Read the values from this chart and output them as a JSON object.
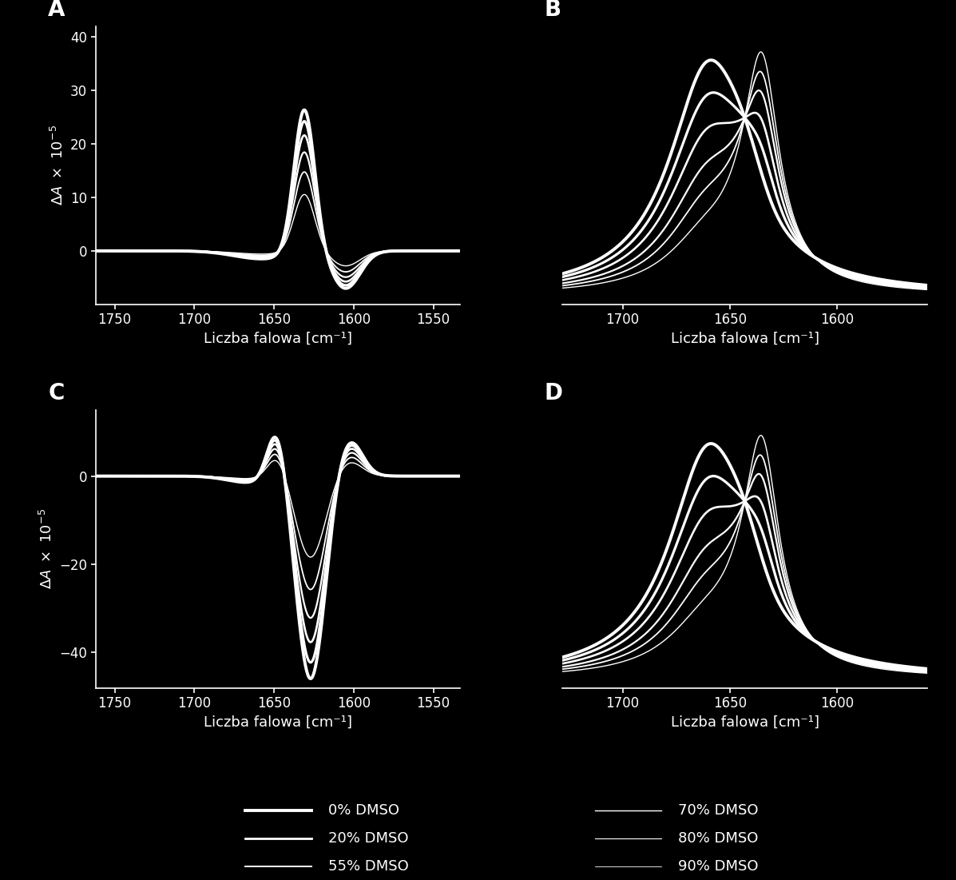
{
  "background_color": "#000000",
  "text_color": "#ffffff",
  "spine_color": "#ffffff",
  "xlabel": "Liczba falowa [cm⁻¹]",
  "panel_A": {
    "xlim": [
      1762,
      1533
    ],
    "ylim": [
      -10,
      42
    ],
    "yticks": [
      0,
      10,
      20,
      30,
      40
    ],
    "xticks": [
      1750,
      1700,
      1650,
      1600,
      1550
    ]
  },
  "panel_B": {
    "xlim": [
      1728,
      1558
    ],
    "ylim": [
      -6,
      42
    ],
    "xticks": [
      1700,
      1650,
      1600
    ]
  },
  "panel_C": {
    "xlim": [
      1762,
      1533
    ],
    "ylim": [
      -48,
      15
    ],
    "yticks": [
      -40,
      -20,
      0
    ],
    "xticks": [
      1750,
      1700,
      1650,
      1600,
      1550
    ]
  },
  "panel_D": {
    "xlim": [
      1728,
      1558
    ],
    "ylim": [
      -6,
      42
    ],
    "xticks": [
      1700,
      1650,
      1600
    ]
  },
  "legend_left_labels": [
    "0% DMSO",
    "20% DMSO",
    "55% DMSO"
  ],
  "legend_right_labels": [
    "70% DMSO",
    "80% DMSO",
    "90% DMSO"
  ]
}
